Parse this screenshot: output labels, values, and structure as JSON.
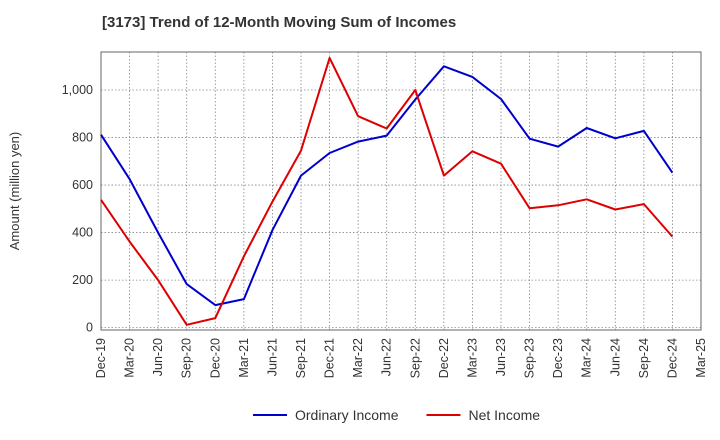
{
  "chart_data": {
    "type": "line",
    "title": "[3173]  Trend of 12-Month Moving Sum of Incomes",
    "xlabel": "",
    "ylabel": "Amount (million yen)",
    "ylim": [
      -10,
      1160
    ],
    "yticks": [
      0,
      200,
      400,
      600,
      800,
      1000
    ],
    "ytick_labels": [
      "0",
      "200",
      "400",
      "600",
      "800",
      "1,000"
    ],
    "categories": [
      "Dec-19",
      "Mar-20",
      "Jun-20",
      "Sep-20",
      "Dec-20",
      "Mar-21",
      "Jun-21",
      "Sep-21",
      "Dec-21",
      "Mar-22",
      "Jun-22",
      "Sep-22",
      "Dec-22",
      "Mar-23",
      "Jun-23",
      "Sep-23",
      "Dec-23",
      "Mar-24",
      "Jun-24",
      "Sep-24",
      "Dec-24",
      "Mar-25"
    ],
    "series": [
      {
        "name": "Ordinary Income",
        "color": "#0000cc",
        "values": [
          812,
          625,
          400,
          183,
          95,
          120,
          410,
          640,
          735,
          783,
          808,
          960,
          1100,
          1055,
          962,
          795,
          762,
          840,
          797,
          828,
          652,
          null
        ]
      },
      {
        "name": "Net Income",
        "color": "#dd0000",
        "values": [
          538,
          362,
          200,
          12,
          40,
          300,
          530,
          745,
          1135,
          890,
          838,
          1000,
          640,
          742,
          690,
          502,
          515,
          540,
          497,
          520,
          383,
          null
        ]
      }
    ],
    "grid": true,
    "legend_position": "bottom-center"
  }
}
